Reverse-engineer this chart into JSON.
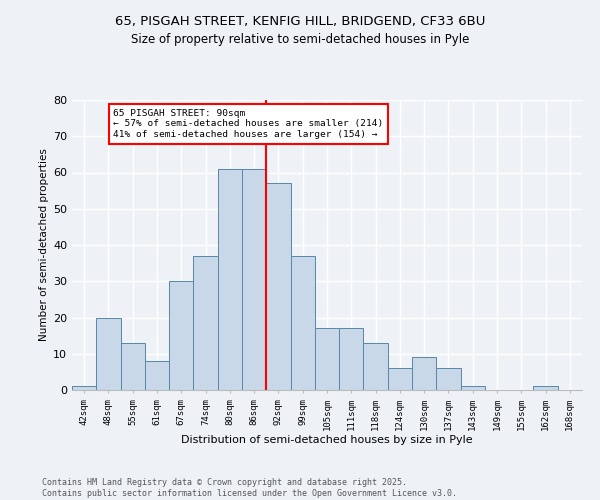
{
  "title1": "65, PISGAH STREET, KENFIG HILL, BRIDGEND, CF33 6BU",
  "title2": "Size of property relative to semi-detached houses in Pyle",
  "xlabel": "Distribution of semi-detached houses by size in Pyle",
  "ylabel": "Number of semi-detached properties",
  "footer1": "Contains HM Land Registry data © Crown copyright and database right 2025.",
  "footer2": "Contains public sector information licensed under the Open Government Licence v3.0.",
  "annotation_title": "65 PISGAH STREET: 90sqm",
  "annotation_line1": "← 57% of semi-detached houses are smaller (214)",
  "annotation_line2": "41% of semi-detached houses are larger (154) →",
  "property_size": 90,
  "bar_color": "#c8d8e8",
  "bar_edge_color": "#5588aa",
  "vline_color": "red",
  "categories": [
    "42sqm",
    "48sqm",
    "55sqm",
    "61sqm",
    "67sqm",
    "74sqm",
    "80sqm",
    "86sqm",
    "92sqm",
    "99sqm",
    "105sqm",
    "111sqm",
    "118sqm",
    "124sqm",
    "130sqm",
    "137sqm",
    "143sqm",
    "149sqm",
    "155sqm",
    "162sqm",
    "168sqm"
  ],
  "values": [
    1,
    20,
    13,
    8,
    30,
    37,
    61,
    61,
    57,
    37,
    17,
    17,
    13,
    6,
    9,
    6,
    1,
    0,
    0,
    1,
    0
  ],
  "ylim": [
    0,
    80
  ],
  "yticks": [
    0,
    10,
    20,
    30,
    40,
    50,
    60,
    70,
    80
  ],
  "vline_index": 8,
  "background_color": "#eef2f7",
  "grid_color": "#ffffff"
}
